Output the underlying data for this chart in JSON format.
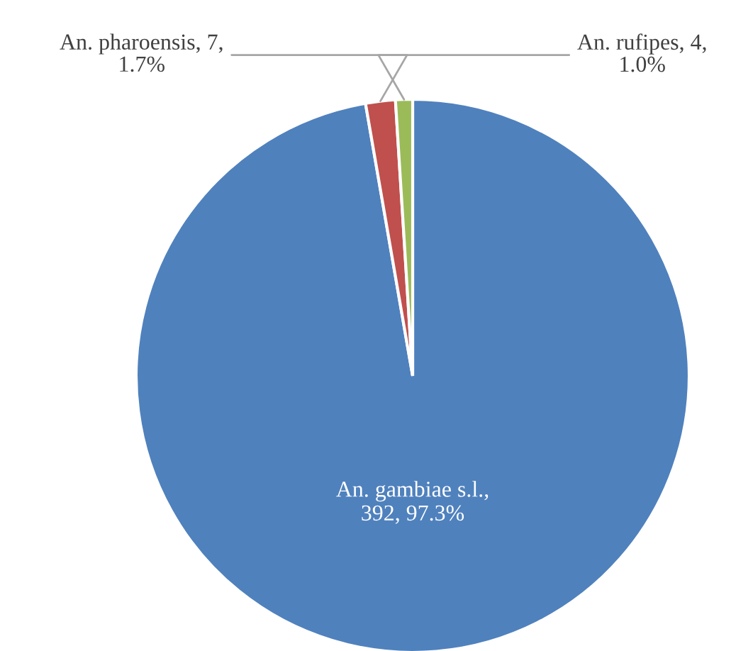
{
  "chart_data": {
    "type": "pie",
    "categories": [
      "An. gambiae s.l.",
      "An. pharoensis",
      "An. rufipes"
    ],
    "values": [
      392,
      7,
      4
    ],
    "colors": [
      "#4f81bd",
      "#c0504d",
      "#9bbb59"
    ],
    "value_labels": [
      ",\n392, 97.3%",
      ", 7,\n1.7%",
      ", 4,\n1.0%"
    ]
  }
}
